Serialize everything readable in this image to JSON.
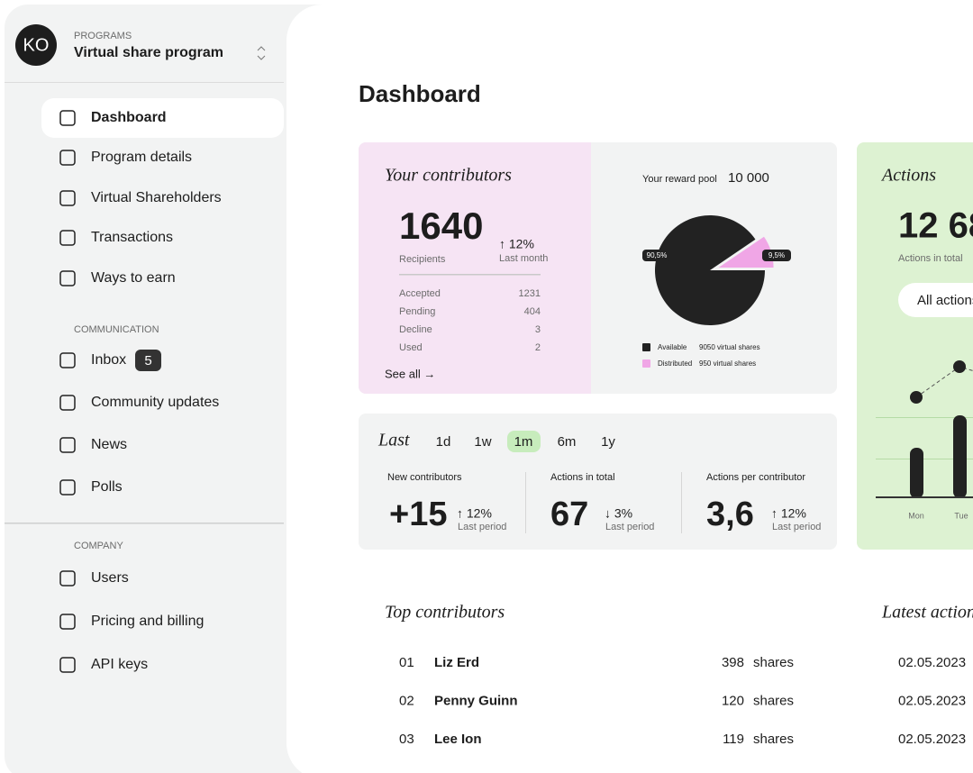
{
  "sidebar": {
    "logo": "KO",
    "section": "PROGRAMS",
    "program": "Virtual share program",
    "nav": [
      {
        "label": "Dashboard"
      },
      {
        "label": "Program details"
      },
      {
        "label": "Virtual Shareholders"
      },
      {
        "label": "Transactions"
      },
      {
        "label": "Ways to earn"
      }
    ],
    "active": "Dashboard",
    "communication_heading": "COMMUNICATION",
    "communication": [
      {
        "label": "Inbox",
        "badge": 5
      },
      {
        "label": "Community updates"
      },
      {
        "label": "News"
      },
      {
        "label": "Polls"
      }
    ],
    "company_heading": "COMPANY",
    "company": [
      {
        "label": "Users"
      },
      {
        "label": "Pricing and billing"
      },
      {
        "label": "API keys"
      }
    ]
  },
  "page_title": "Dashboard",
  "contributors": {
    "title": "Your contributors",
    "total": 1640,
    "total_label": "Recipients",
    "change": "↑ 12%",
    "change_label": "Last month",
    "rows": [
      [
        "Accepted",
        1231
      ],
      [
        "Pending",
        404
      ],
      [
        "Decline",
        3
      ],
      [
        "Used",
        2
      ]
    ],
    "link": "See all →"
  },
  "reward_pool": {
    "title": "Your reward pool",
    "total": "10 000",
    "slices": [
      {
        "name": "Available",
        "value": 90.5,
        "label": "90,5%",
        "detail": "9050 virtual shares",
        "color": "#222222"
      },
      {
        "name": "Distributed",
        "value": 9.5,
        "label": "9,5%",
        "detail": "950 virtual shares",
        "color": "#f0a6e6"
      }
    ]
  },
  "period": {
    "title": "Last",
    "options": [
      "1d",
      "1w",
      "1m",
      "6m",
      "1y"
    ],
    "active": "1m"
  },
  "stats": [
    {
      "label": "New contributors",
      "value": "+15",
      "change": "↑ 12%",
      "change_label": "Last period"
    },
    {
      "label": "Actions in total",
      "value": "67",
      "change": "↓ 3%",
      "change_label": "Last period"
    },
    {
      "label": "Actions per contributor",
      "value": "3,6",
      "change": "↑ 12%",
      "change_label": "Last period"
    }
  ],
  "actions": {
    "title": "Actions",
    "total": "12 68",
    "total_label": "Actions in total",
    "filter": "All actions",
    "days": [
      "Mon",
      "Tue"
    ]
  },
  "top_contributors": {
    "title": "Top contributors",
    "unit": "shares",
    "rows": [
      {
        "rank": "01",
        "name": "Liz Erd",
        "shares": 398
      },
      {
        "rank": "02",
        "name": "Penny Guinn",
        "shares": 120
      },
      {
        "rank": "03",
        "name": "Lee Ion",
        "shares": 119
      }
    ]
  },
  "latest_actions": {
    "title": "Latest actions",
    "dates": [
      "02.05.2023",
      "02.05.2023",
      "02.05.2023"
    ]
  }
}
